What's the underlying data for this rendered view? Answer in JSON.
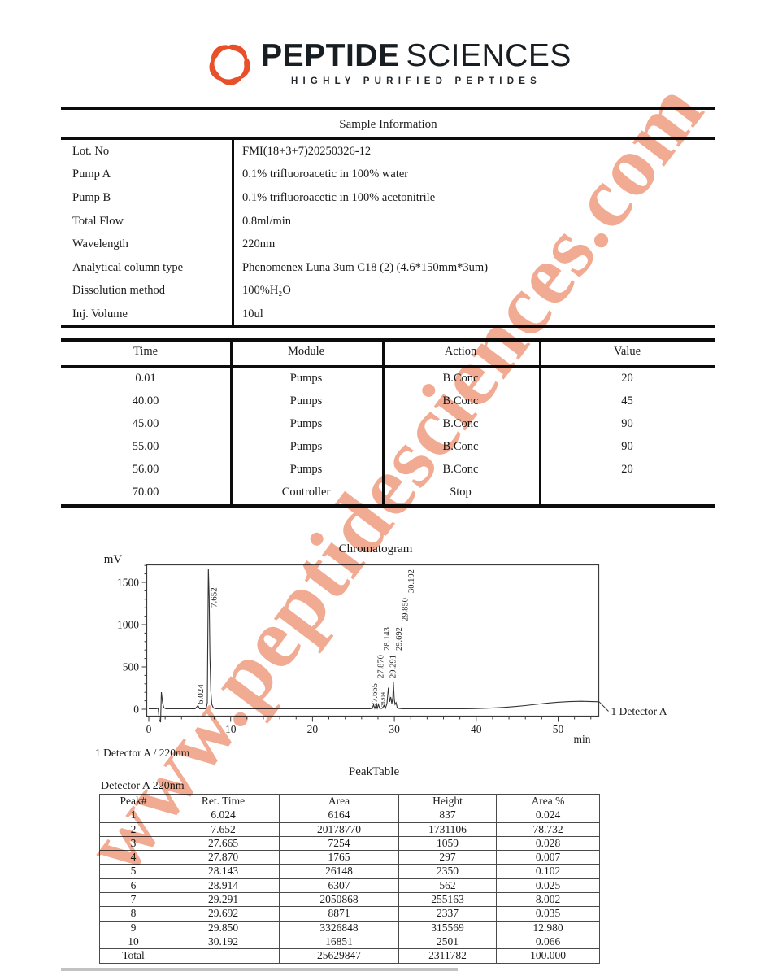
{
  "watermark": "www.peptidesciences.com",
  "logo": {
    "brand_bold": "PEPTIDE",
    "brand_light": "SCIENCES",
    "tagline": "HIGHLY PURIFIED PEPTIDES",
    "brand_color": "#e8502a"
  },
  "sample_information": {
    "title": "Sample Information",
    "rows": [
      {
        "label": "Lot. No",
        "value": "FMI(18+3+7)20250326-12"
      },
      {
        "label": "Pump A",
        "value": "0.1% trifluoroacetic in 100% water"
      },
      {
        "label": "Pump B",
        "value": "0.1% trifluoroacetic in 100% acetonitrile"
      },
      {
        "label": "Total Flow",
        "value": "0.8ml/min"
      },
      {
        "label": "Wavelength",
        "value": "220nm"
      },
      {
        "label": "Analytical column type",
        "value": "Phenomenex Luna 3um C18 (2) (4.6*150mm*3um)"
      },
      {
        "label": "Dissolution method",
        "value": "100%H₂O"
      },
      {
        "label": "Inj. Volume",
        "value": "10ul"
      }
    ]
  },
  "program_table": {
    "headers": [
      "Time",
      "Module",
      "Action",
      "Value"
    ],
    "rows": [
      [
        "0.01",
        "Pumps",
        "B.Conc",
        "20"
      ],
      [
        "40.00",
        "Pumps",
        "B.Conc",
        "45"
      ],
      [
        "45.00",
        "Pumps",
        "B.Conc",
        "90"
      ],
      [
        "55.00",
        "Pumps",
        "B.Conc",
        "90"
      ],
      [
        "56.00",
        "Pumps",
        "B.Conc",
        "20"
      ],
      [
        "70.00",
        "Controller",
        "Stop",
        ""
      ]
    ]
  },
  "chart_data": {
    "type": "line",
    "title": "Chromatogram",
    "xlabel": "min",
    "ylabel": "mV",
    "xlim": [
      0,
      55
    ],
    "ylim": [
      0,
      1750
    ],
    "x_ticks": [
      0,
      10,
      20,
      30,
      40,
      50
    ],
    "y_ticks": [
      0,
      500,
      1000,
      1500
    ],
    "series_label": "1 Detector A",
    "detector_caption": "1 Detector A / 220nm",
    "labeled_peaks": [
      "6.024",
      "7.652",
      "27.665",
      "27.870",
      "28.143",
      "28.914",
      "29.291",
      "29.692",
      "29.850",
      "30.192"
    ],
    "peaks_mV": [
      {
        "ret_time": 6.024,
        "height_mV": 0.8
      },
      {
        "ret_time": 7.652,
        "height_mV": 1731.1
      },
      {
        "ret_time": 27.665,
        "height_mV": 1.1
      },
      {
        "ret_time": 27.87,
        "height_mV": 0.3
      },
      {
        "ret_time": 28.143,
        "height_mV": 2.4
      },
      {
        "ret_time": 28.914,
        "height_mV": 0.6
      },
      {
        "ret_time": 29.291,
        "height_mV": 255.2
      },
      {
        "ret_time": 29.692,
        "height_mV": 2.3
      },
      {
        "ret_time": 29.85,
        "height_mV": 315.6
      },
      {
        "ret_time": 30.192,
        "height_mV": 2.5
      }
    ]
  },
  "peak_table": {
    "title": "PeakTable",
    "subtitle": "Detector A 220nm",
    "headers": [
      "Peak#",
      "Ret. Time",
      "Area",
      "Height",
      "Area %"
    ],
    "rows": [
      [
        "1",
        "6.024",
        "6164",
        "837",
        "0.024"
      ],
      [
        "2",
        "7.652",
        "20178770",
        "1731106",
        "78.732"
      ],
      [
        "3",
        "27.665",
        "7254",
        "1059",
        "0.028"
      ],
      [
        "4",
        "27.870",
        "1765",
        "297",
        "0.007"
      ],
      [
        "5",
        "28.143",
        "26148",
        "2350",
        "0.102"
      ],
      [
        "6",
        "28.914",
        "6307",
        "562",
        "0.025"
      ],
      [
        "7",
        "29.291",
        "2050868",
        "255163",
        "8.002"
      ],
      [
        "8",
        "29.692",
        "8871",
        "2337",
        "0.035"
      ],
      [
        "9",
        "29.850",
        "3326848",
        "315569",
        "12.980"
      ],
      [
        "10",
        "30.192",
        "16851",
        "2501",
        "0.066"
      ],
      [
        "Total",
        "",
        "25629847",
        "2311782",
        "100.000"
      ]
    ]
  }
}
